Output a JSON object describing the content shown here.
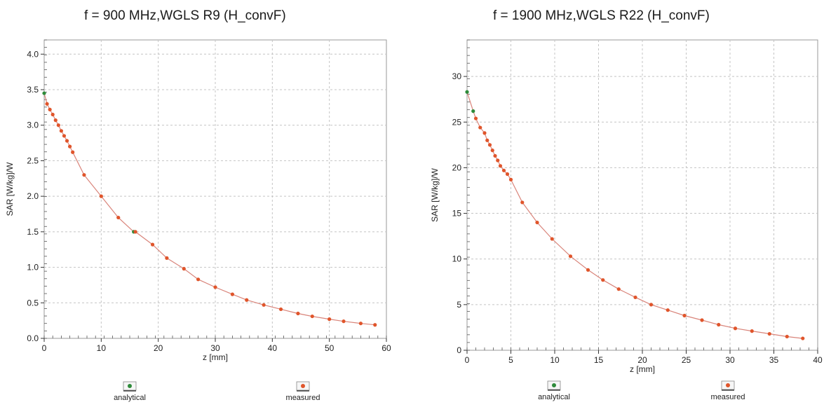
{
  "chart_data": [
    {
      "type": "scatter",
      "title": "f = 900 MHz,WGLS R9 (H_convF)",
      "xlabel": "z [mm]",
      "ylabel": "SAR [W/kg]/W",
      "xlim": [
        0,
        60
      ],
      "ylim": [
        0,
        4.2
      ],
      "xticks": [
        "0",
        "10",
        "20",
        "30",
        "40",
        "50",
        "60"
      ],
      "yticks": [
        "0.0",
        "0.5",
        "1.0",
        "1.5",
        "2.0",
        "2.5",
        "3.0",
        "3.5",
        "4.0"
      ],
      "grid": true,
      "legend_position": "bottom",
      "series": [
        {
          "name": "analytical",
          "color": "#2e8b3a",
          "x": [
            0,
            15.7
          ],
          "y": [
            3.45,
            1.5
          ]
        },
        {
          "name": "measured",
          "color": "#e0552b",
          "x": [
            0.5,
            1,
            1.5,
            2,
            2.5,
            3,
            3.5,
            4,
            4.5,
            5,
            7,
            10,
            13,
            16,
            19,
            21.5,
            24.5,
            27,
            30,
            33,
            35.5,
            38.5,
            41.5,
            44.5,
            47,
            50,
            52.5,
            55.5,
            58
          ],
          "y": [
            3.3,
            3.22,
            3.15,
            3.07,
            3.0,
            2.92,
            2.85,
            2.78,
            2.7,
            2.62,
            2.3,
            2.0,
            1.7,
            1.5,
            1.32,
            1.13,
            0.98,
            0.83,
            0.72,
            0.62,
            0.54,
            0.47,
            0.41,
            0.35,
            0.31,
            0.27,
            0.24,
            0.21,
            0.19
          ]
        }
      ]
    },
    {
      "type": "scatter",
      "title": "f = 1900 MHz,WGLS R22 (H_convF)",
      "xlabel": "z [mm]",
      "ylabel": "SAR [W/kg]/W",
      "xlim": [
        0,
        40
      ],
      "ylim": [
        0,
        34
      ],
      "xticks": [
        "0",
        "5",
        "10",
        "15",
        "20",
        "25",
        "30",
        "35",
        "40"
      ],
      "yticks": [
        "0",
        "5",
        "10",
        "15",
        "20",
        "25",
        "30"
      ],
      "grid": true,
      "legend_position": "bottom",
      "series": [
        {
          "name": "analytical",
          "color": "#2e8b3a",
          "x": [
            0,
            0.7
          ],
          "y": [
            28.3,
            26.2
          ]
        },
        {
          "name": "measured",
          "color": "#e0552b",
          "x": [
            1,
            1.5,
            2,
            2.3,
            2.6,
            2.9,
            3.2,
            3.5,
            3.8,
            4.2,
            4.6,
            5,
            6.3,
            8,
            9.7,
            11.8,
            13.8,
            15.5,
            17.3,
            19.2,
            21,
            22.9,
            24.8,
            26.8,
            28.7,
            30.6,
            32.5,
            34.5,
            36.5,
            38.3
          ],
          "y": [
            25.4,
            24.4,
            23.8,
            23.0,
            22.5,
            21.9,
            21.3,
            20.8,
            20.2,
            19.7,
            19.3,
            18.7,
            16.2,
            14.0,
            12.2,
            10.3,
            8.8,
            7.7,
            6.7,
            5.8,
            5.0,
            4.4,
            3.8,
            3.3,
            2.8,
            2.4,
            2.1,
            1.8,
            1.5,
            1.3
          ]
        }
      ]
    }
  ]
}
